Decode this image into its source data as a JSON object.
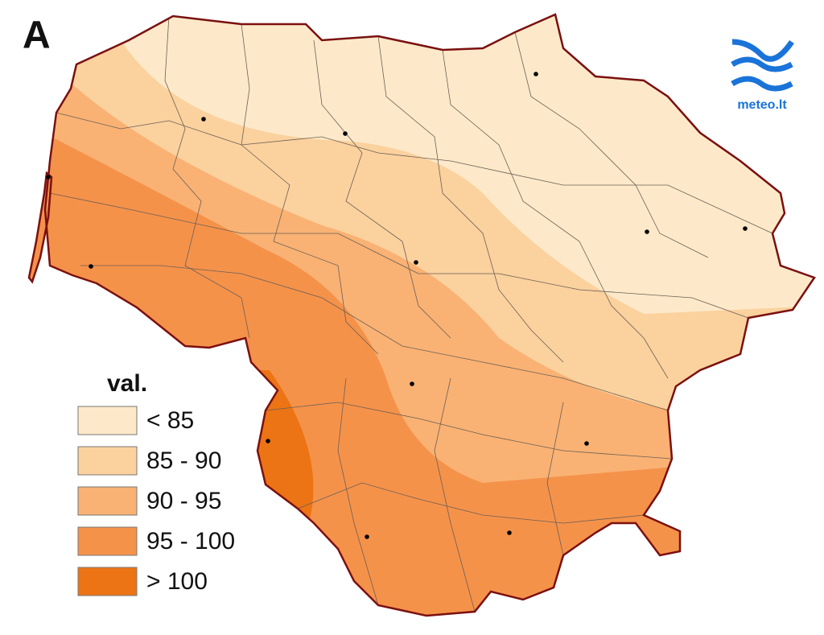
{
  "panel_label": "A",
  "legend": {
    "title": "val.",
    "items": [
      {
        "label": "< 85",
        "color": "#fde9c9"
      },
      {
        "label": "85 - 90",
        "color": "#fbd19e"
      },
      {
        "label": "90 - 95",
        "color": "#f9b274"
      },
      {
        "label": "95 - 100",
        "color": "#f5924a"
      },
      {
        "label": "> 100",
        "color": "#ec7414"
      }
    ]
  },
  "logo": {
    "text": "meteo.lt"
  }
}
